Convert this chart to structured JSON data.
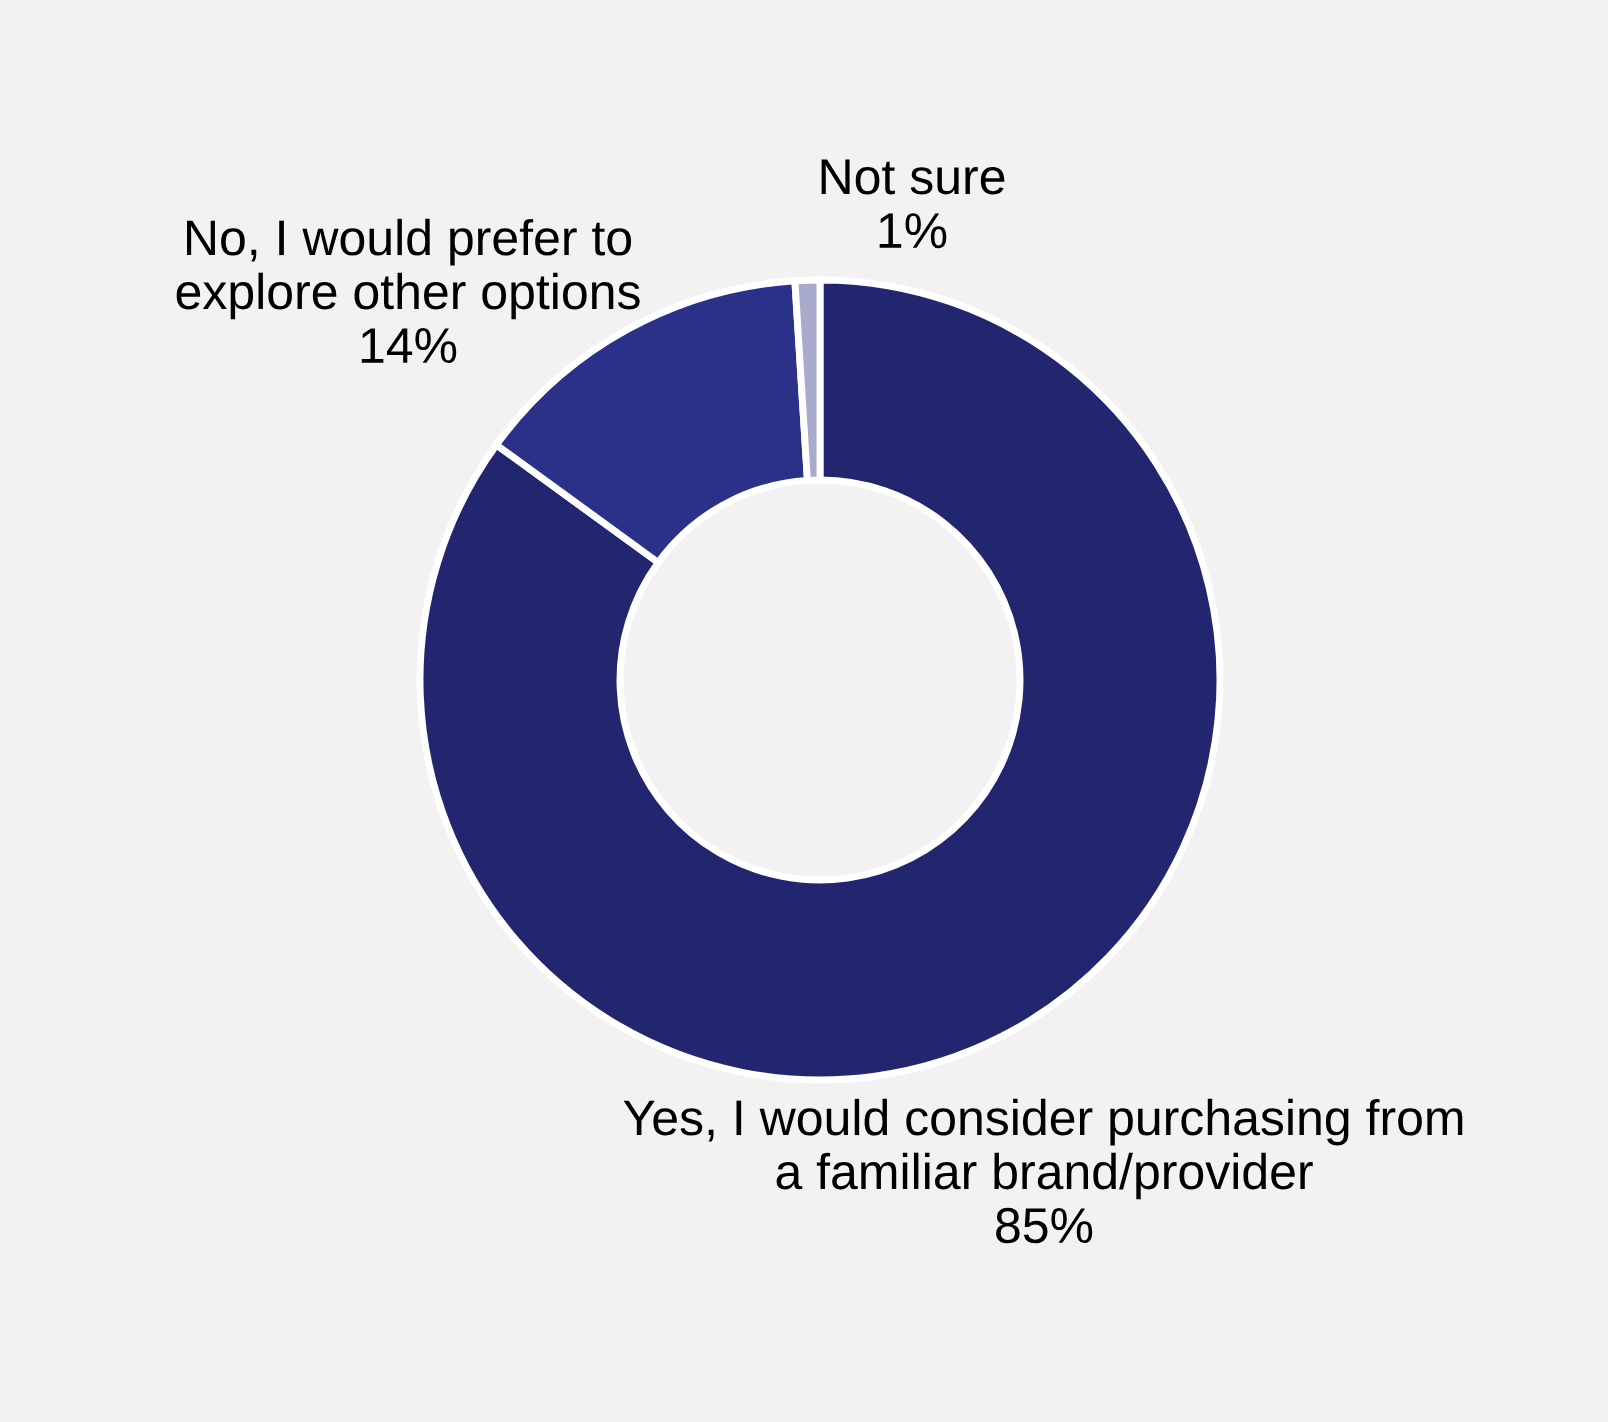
{
  "chart_data": {
    "type": "donut",
    "categories": [
      "Yes, I would consider purchasing from a familiar brand/provider",
      "No, I would prefer to explore other options",
      "Not sure"
    ],
    "values": [
      85,
      14,
      1
    ],
    "colors": [
      "#22266f",
      "#2b3188",
      "#a9abcc"
    ],
    "value_labels": [
      "85%",
      "14%",
      "1%"
    ],
    "legend": false
  }
}
